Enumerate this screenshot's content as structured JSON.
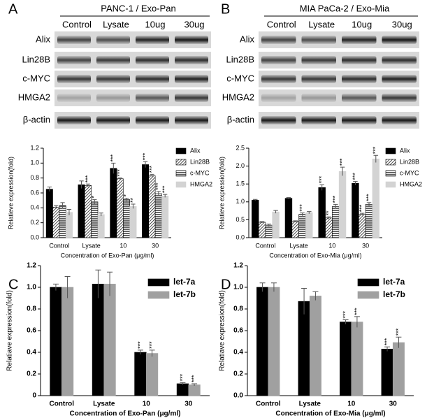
{
  "panel_labels": [
    "A",
    "B",
    "C",
    "D"
  ],
  "blots": [
    {
      "title": "PANC-1 / Exo-Pan",
      "lanes": [
        "Control",
        "Lysate",
        "10ug",
        "30ug"
      ],
      "rows": [
        "Alix",
        "Lin28B",
        "c-MYC",
        "HMGA2",
        "β-actin"
      ]
    },
    {
      "title": "MIA PaCa-2 / Exo-Mia",
      "lanes": [
        "Control",
        "Lysate",
        "10ug",
        "30ug"
      ],
      "rows": [
        "Alix",
        "Lin28B",
        "c-MYC",
        "HMGA2",
        "β-actin"
      ]
    }
  ],
  "chart_data": [
    {
      "type": "bar",
      "y_label": "Relatieve expression(fold)",
      "x_label": "Concentration of Exo-Pan (μg/ml)",
      "categories": [
        "Control",
        "Lysate",
        "10",
        "30"
      ],
      "ylim": [
        0,
        1.2
      ],
      "yticks": [
        {
          "value": 0,
          "label": "0.0"
        },
        0.2,
        0.4,
        0.6,
        0.8,
        {
          "value": 1,
          "label": "1.0"
        },
        1.2
      ],
      "series": [
        {
          "name": "Alix",
          "color": "#000000",
          "pattern": "solid",
          "values": [
            0.65,
            0.71,
            0.93,
            0.98
          ],
          "errors": [
            0.03,
            0.05,
            0.07,
            0.04
          ],
          "stars": [
            null,
            null,
            "***",
            "***"
          ]
        },
        {
          "name": "Lin28B",
          "color": "#000000",
          "pattern": "diagonal",
          "values": [
            0.41,
            0.7,
            0.79,
            0.83
          ],
          "errors": [
            0.02,
            0.02,
            0.01,
            0.02
          ],
          "stars": [
            null,
            "***",
            "***",
            "***"
          ]
        },
        {
          "name": "c-MYC",
          "color": "#000000",
          "pattern": "horizontal",
          "values": [
            0.43,
            0.48,
            0.51,
            0.59
          ],
          "errors": [
            0.04,
            0.03,
            0.02,
            0.03
          ],
          "stars": [
            null,
            "*",
            "*",
            "***"
          ]
        },
        {
          "name": "HMGA2",
          "color": "#d3d3d3",
          "pattern": "solid",
          "values": [
            0.34,
            0.31,
            0.42,
            0.56
          ],
          "errors": [
            0.04,
            0.02,
            0.03,
            0.02
          ],
          "stars": [
            null,
            null,
            "**",
            "***"
          ]
        }
      ]
    },
    {
      "type": "bar",
      "y_label": "Relatieve expression(fold)",
      "x_label": "Concentration of Exo-Mia (μg/ml)",
      "categories": [
        "Control",
        "Lysate",
        "10",
        "30"
      ],
      "ylim": [
        0,
        2.5
      ],
      "yticks": [
        {
          "value": 0,
          "label": "0.0"
        },
        0.5,
        {
          "value": 1,
          "label": "1.0"
        },
        1.5,
        {
          "value": 2,
          "label": "2.0"
        },
        2.5
      ],
      "series": [
        {
          "name": "Alix",
          "color": "#000000",
          "pattern": "solid",
          "values": [
            1.05,
            1.1,
            1.4,
            1.52
          ],
          "errors": [
            0.02,
            0.02,
            0.08,
            0.05
          ],
          "stars": [
            null,
            null,
            "***",
            "***"
          ]
        },
        {
          "name": "Lin28B",
          "color": "#000000",
          "pattern": "diagonal",
          "values": [
            0.43,
            0.45,
            0.55,
            0.65
          ],
          "errors": [
            0.02,
            0.02,
            0.03,
            0.03
          ],
          "stars": [
            null,
            null,
            "**",
            "***"
          ]
        },
        {
          "name": "c-MYC",
          "color": "#000000",
          "pattern": "horizontal",
          "values": [
            0.35,
            0.65,
            0.87,
            0.93
          ],
          "errors": [
            0.03,
            0.04,
            0.06,
            0.05
          ],
          "stars": [
            null,
            "***",
            "***",
            "***"
          ]
        },
        {
          "name": "HMGA2",
          "color": "#d3d3d3",
          "pattern": "solid",
          "values": [
            0.72,
            0.7,
            1.85,
            2.2
          ],
          "errors": [
            0.04,
            0.03,
            0.12,
            0.1
          ],
          "stars": [
            null,
            null,
            "***",
            "***"
          ]
        }
      ]
    },
    {
      "type": "bar",
      "y_label": "Relatiave expression(fold)",
      "x_label": "Concentration of Exo-Pan (μg/ml)",
      "categories": [
        "Control",
        "Lysate",
        "10",
        "30"
      ],
      "ylim": [
        0,
        1.2
      ],
      "yticks": [
        0,
        0.2,
        0.4,
        0.6,
        0.8,
        {
          "value": 1,
          "label": "1.0"
        },
        1.2
      ],
      "series": [
        {
          "name": "let-7a",
          "color": "#000000",
          "pattern": "solid",
          "values": [
            1.0,
            1.03,
            0.4,
            0.11
          ],
          "errors": [
            0.03,
            0.13,
            0.02,
            0.01
          ],
          "stars": [
            null,
            null,
            "***",
            "***"
          ]
        },
        {
          "name": "let-7b",
          "color": "#a0a0a0",
          "pattern": "solid",
          "values": [
            1.0,
            1.03,
            0.39,
            0.1
          ],
          "errors": [
            0.1,
            0.11,
            0.03,
            0.01
          ],
          "stars": [
            null,
            null,
            "***",
            "***"
          ]
        }
      ]
    },
    {
      "type": "bar",
      "y_label": "Relatiave expression(fold)",
      "x_label": "Concentration of Exo-Mia (μg/ml)",
      "categories": [
        "Control",
        "Lysate",
        "10",
        "30"
      ],
      "ylim": [
        0,
        1.2
      ],
      "yticks": [
        {
          "value": 0,
          "label": "0.0"
        },
        0.2,
        0.4,
        0.6,
        0.8,
        {
          "value": 1,
          "label": "1.0"
        },
        1.2
      ],
      "series": [
        {
          "name": "let-7a",
          "color": "#000000",
          "pattern": "solid",
          "values": [
            1.0,
            0.87,
            0.68,
            0.43
          ],
          "errors": [
            0.04,
            0.12,
            0.02,
            0.02
          ],
          "stars": [
            null,
            null,
            "***",
            "***"
          ]
        },
        {
          "name": "let-7b",
          "color": "#a0a0a0",
          "pattern": "solid",
          "values": [
            1.0,
            0.92,
            0.68,
            0.49
          ],
          "errors": [
            0.04,
            0.04,
            0.05,
            0.05
          ],
          "stars": [
            null,
            null,
            "***",
            "***"
          ]
        }
      ]
    }
  ]
}
